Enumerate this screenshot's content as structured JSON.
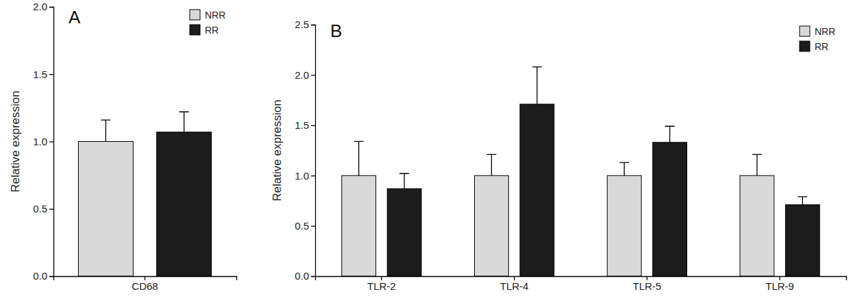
{
  "chart_data": [
    {
      "type": "bar",
      "title": "A",
      "y_label": "Relative expression",
      "categories": [
        "CD68"
      ],
      "series": [
        {
          "name": "NRR",
          "color": "#d9d9d9",
          "values": [
            1.0
          ],
          "errors": [
            0.16
          ]
        },
        {
          "name": "RR",
          "color": "#1c1c1c",
          "values": [
            1.07
          ],
          "errors": [
            0.15
          ]
        }
      ],
      "ylim": [
        0,
        2
      ],
      "yticks": [
        {
          "value": 0,
          "label": "0.0"
        },
        {
          "value": 0.5,
          "label": "0.5"
        },
        {
          "value": 1,
          "label": "1.0"
        },
        {
          "value": 1.5,
          "label": "1.5"
        },
        {
          "value": 2,
          "label": "2.0"
        }
      ],
      "legend": "top-right"
    },
    {
      "type": "bar",
      "title": "B",
      "y_label": "Relative expression",
      "categories": [
        "TLR-2",
        "TLR-4",
        "TLR-5",
        "TLR-9"
      ],
      "series": [
        {
          "name": "NRR",
          "color": "#d9d9d9",
          "values": [
            1.0,
            1.0,
            1.0,
            1.0
          ],
          "errors": [
            0.34,
            0.21,
            0.13,
            0.21
          ]
        },
        {
          "name": "RR",
          "color": "#1c1c1c",
          "values": [
            0.87,
            1.71,
            1.33,
            0.71
          ],
          "errors": [
            0.15,
            0.37,
            0.16,
            0.08
          ]
        }
      ],
      "ylim": [
        0,
        2.5
      ],
      "yticks": [
        {
          "value": 0,
          "label": "0.0"
        },
        {
          "value": 0.5,
          "label": "0.5"
        },
        {
          "value": 1,
          "label": "1.0"
        },
        {
          "value": 1.5,
          "label": "1.5"
        },
        {
          "value": 2,
          "label": "2.0"
        },
        {
          "value": 2.5,
          "label": "2.5"
        }
      ],
      "legend": "top-right"
    }
  ]
}
